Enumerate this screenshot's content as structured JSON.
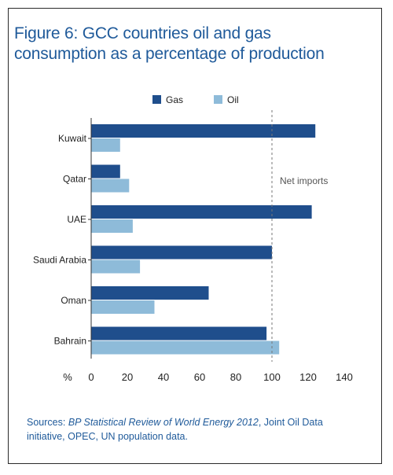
{
  "title_line1": "Figure 6: GCC countries oil and gas",
  "title_line2": "consumption as a percentage of production",
  "source": {
    "prefix": "Sources: ",
    "italic": "BP Statistical Review of World Energy 2012",
    "suffix_line1": ", Joint Oil Data",
    "line2": "initiative, OPEC, UN population data."
  },
  "colors": {
    "gas": "#1f4e8c",
    "oil": "#8ebbd9",
    "text": "#222222",
    "title": "#1f5a9a"
  },
  "chart_data": {
    "type": "bar",
    "orientation": "horizontal",
    "categories": [
      "Kuwait",
      "Qatar",
      "UAE",
      "Saudi Arabia",
      "Oman",
      "Bahrain"
    ],
    "series": [
      {
        "name": "Gas",
        "values": [
          124,
          16,
          122,
          100,
          65,
          97
        ]
      },
      {
        "name": "Oil",
        "values": [
          16,
          21,
          23,
          27,
          35,
          104
        ]
      }
    ],
    "xlabel": "%",
    "xlim": [
      0,
      140
    ],
    "xticks": [
      0,
      20,
      40,
      60,
      80,
      100,
      120,
      140
    ],
    "reference_line": {
      "x": 100,
      "label": "Net imports",
      "style": "dashed"
    },
    "legend_position": "top",
    "grid": false
  }
}
